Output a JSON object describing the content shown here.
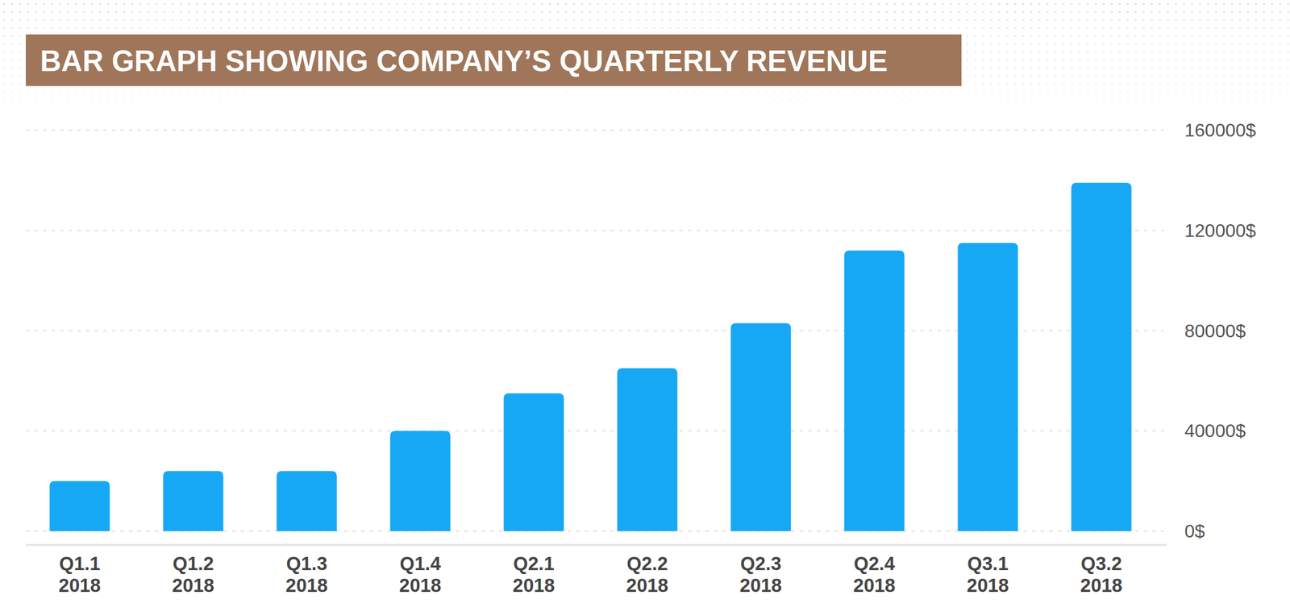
{
  "chart_data": {
    "type": "bar",
    "title": "BAR GRAPH SHOWING COMPANY’S QUARTERLY REVENUE",
    "categories": [
      "Q1.1 2018",
      "Q1.2 2018",
      "Q1.3 2018",
      "Q1.4 2018",
      "Q2.1 2018",
      "Q2.2 2018",
      "Q2.3 2018",
      "Q2.4 2018",
      "Q3.1 2018",
      "Q3.2 2018"
    ],
    "values": [
      20000,
      24000,
      24000,
      40000,
      55000,
      65000,
      83000,
      112000,
      115000,
      139000
    ],
    "color": "#17a8f5",
    "ylim": [
      0,
      160000
    ],
    "yticks": [
      {
        "value": 0,
        "label": "0$"
      },
      {
        "value": 40000,
        "label": "40000$"
      },
      {
        "value": 80000,
        "label": "80000$"
      },
      {
        "value": 120000,
        "label": "120000$"
      },
      {
        "value": 160000,
        "label": "160000$"
      }
    ],
    "grid": true
  }
}
